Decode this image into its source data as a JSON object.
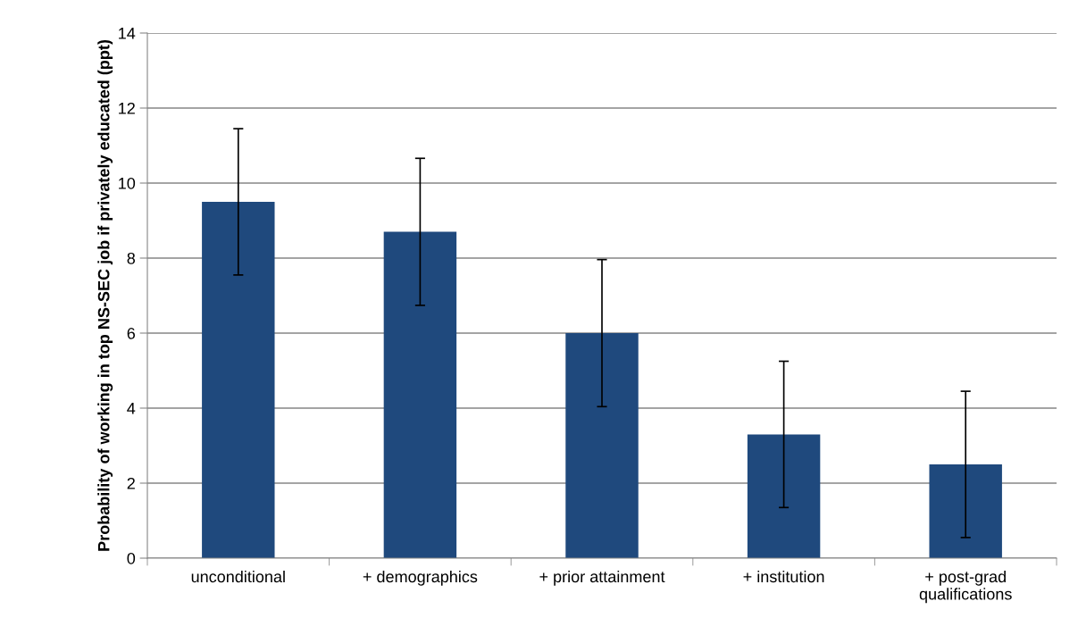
{
  "chart_data": {
    "type": "bar",
    "ylabel": "Probability of working in top NS-SEC job if privately educated (ppt)",
    "categories": [
      "unconditional",
      "+ demographics",
      "+ prior attainment",
      "+ institution",
      "+ post-grad\nqualifications"
    ],
    "values": [
      9.5,
      8.7,
      6.0,
      3.3,
      2.5
    ],
    "errors": [
      1.95,
      1.96,
      1.96,
      1.95,
      1.95
    ],
    "color": "#1f497d",
    "ylim": [
      0,
      14
    ],
    "yticks": [
      0,
      2,
      4,
      6,
      8,
      10,
      12,
      14
    ],
    "grid": "y",
    "legend": false
  }
}
